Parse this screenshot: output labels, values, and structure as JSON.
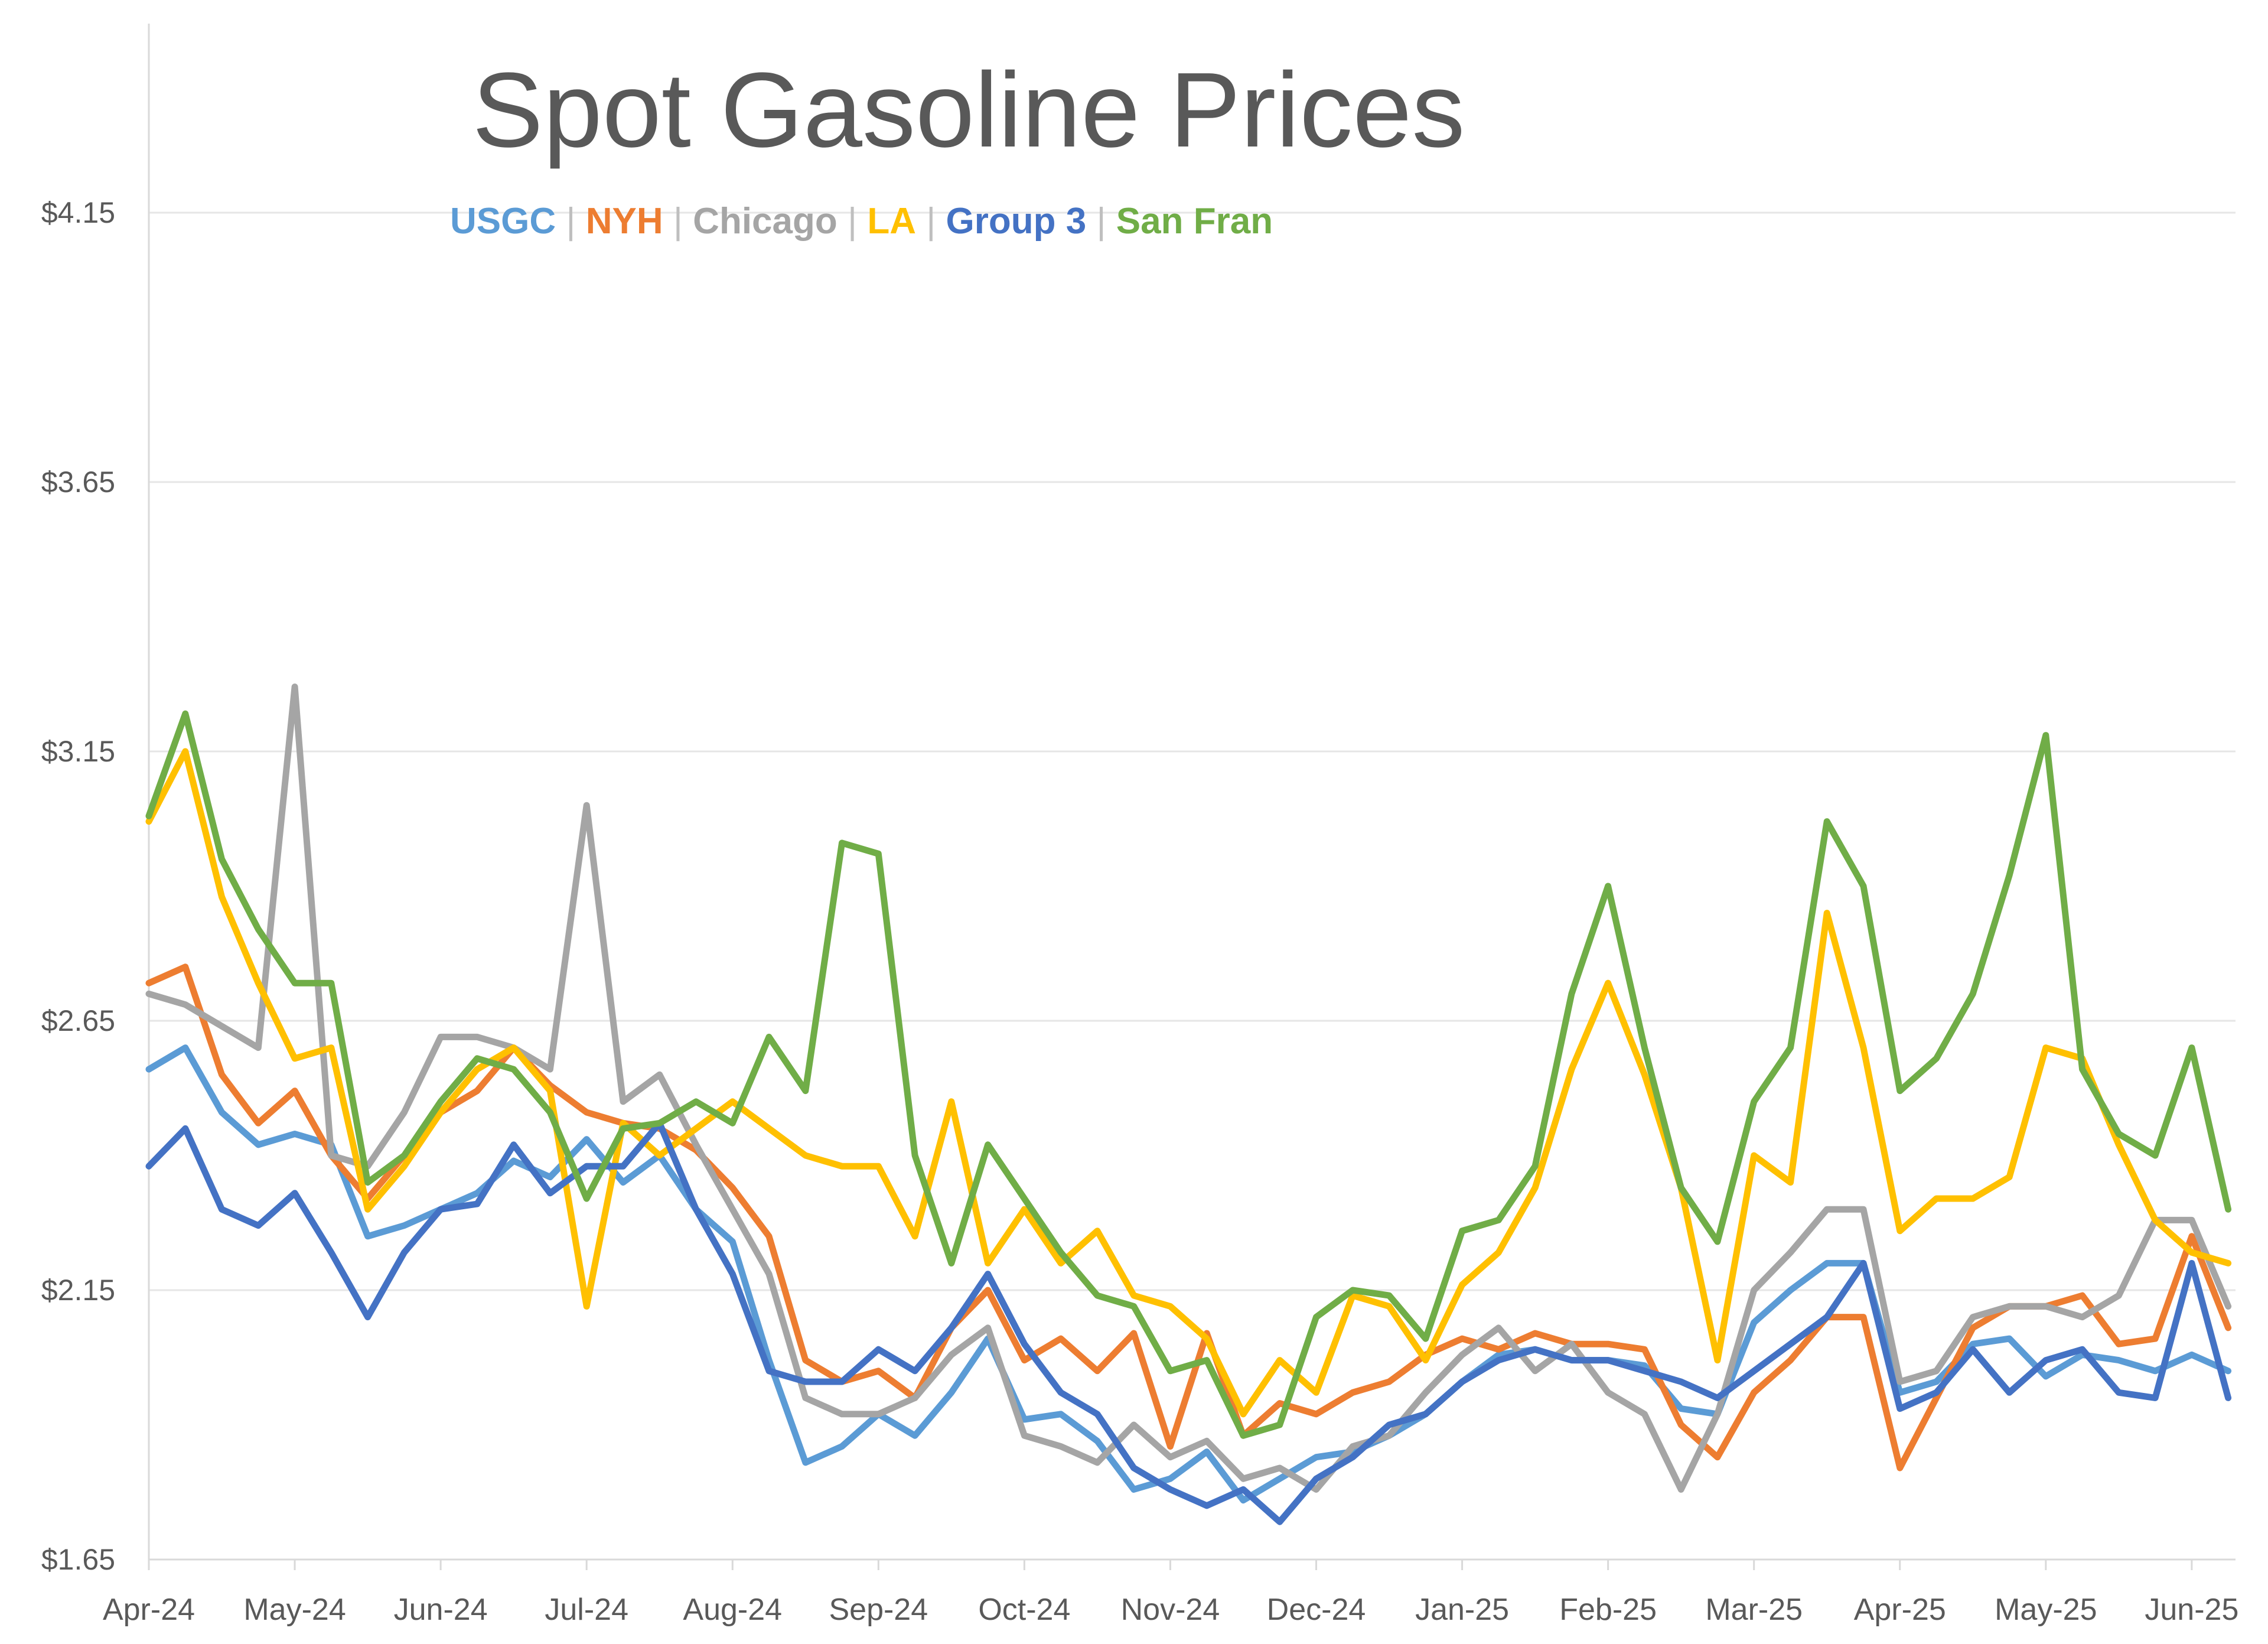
{
  "chart_data": {
    "type": "line",
    "title": "Spot Gasoline Prices",
    "xlabel": "",
    "ylabel": "",
    "ylim": [
      1.65,
      4.15
    ],
    "y_ticks": [
      "$1.65",
      "$2.15",
      "$2.65",
      "$3.15",
      "$3.65",
      "$4.15"
    ],
    "y_tick_values": [
      1.65,
      2.15,
      2.65,
      3.15,
      3.65,
      4.15
    ],
    "x_ticks": [
      "Apr-24",
      "May-24",
      "Jun-24",
      "Jul-24",
      "Aug-24",
      "Sep-24",
      "Oct-24",
      "Nov-24",
      "Dec-24",
      "Jan-25",
      "Feb-25",
      "Mar-25",
      "Apr-25",
      "May-25",
      "Jun-25"
    ],
    "x_range": [
      0,
      14.3
    ],
    "grid": true,
    "legend_position": "top",
    "x": [
      0,
      0.25,
      0.5,
      0.75,
      1.0,
      1.25,
      1.5,
      1.75,
      2.0,
      2.25,
      2.5,
      2.75,
      3.0,
      3.25,
      3.5,
      3.75,
      4.0,
      4.25,
      4.5,
      4.75,
      5.0,
      5.25,
      5.5,
      5.75,
      6.0,
      6.25,
      6.5,
      6.75,
      7.0,
      7.25,
      7.5,
      7.75,
      8.0,
      8.25,
      8.5,
      8.75,
      9.0,
      9.25,
      9.5,
      9.75,
      10.0,
      10.25,
      10.5,
      10.75,
      11.0,
      11.25,
      11.5,
      11.75,
      12.0,
      12.25,
      12.5,
      12.75,
      13.0,
      13.25,
      13.5,
      13.75,
      14.0,
      14.25
    ],
    "series": [
      {
        "name": "USGC",
        "color": "#5B9BD5",
        "values": [
          2.56,
          2.6,
          2.48,
          2.42,
          2.44,
          2.42,
          2.25,
          2.27,
          2.3,
          2.33,
          2.39,
          2.36,
          2.43,
          2.35,
          2.4,
          2.3,
          2.24,
          2.02,
          1.83,
          1.86,
          1.92,
          1.88,
          1.96,
          2.06,
          1.91,
          1.92,
          1.87,
          1.78,
          1.8,
          1.85,
          1.76,
          1.8,
          1.84,
          1.85,
          1.88,
          1.92,
          1.98,
          2.03,
          2.04,
          2.02,
          2.02,
          2.01,
          1.93,
          1.92,
          2.09,
          2.15,
          2.2,
          2.2,
          1.96,
          1.98,
          2.05,
          2.06,
          1.99,
          2.03,
          2.02,
          2.0,
          2.03,
          2.0
        ]
      },
      {
        "name": "NYH",
        "color": "#ED7D31",
        "values": [
          2.72,
          2.75,
          2.55,
          2.46,
          2.52,
          2.4,
          2.32,
          2.4,
          2.48,
          2.52,
          2.6,
          2.53,
          2.48,
          2.46,
          2.45,
          2.41,
          2.34,
          2.25,
          2.02,
          1.98,
          2.0,
          1.95,
          2.08,
          2.15,
          2.02,
          2.06,
          2.0,
          2.07,
          1.86,
          2.07,
          1.88,
          1.94,
          1.92,
          1.96,
          1.98,
          2.03,
          2.06,
          2.04,
          2.07,
          2.05,
          2.05,
          2.04,
          1.9,
          1.84,
          1.96,
          2.02,
          2.1,
          2.1,
          1.82,
          1.95,
          2.08,
          2.12,
          2.12,
          2.14,
          2.05,
          2.06,
          2.25,
          2.08
        ]
      },
      {
        "name": "Chicago",
        "color": "#A5A5A5",
        "values": [
          2.7,
          2.68,
          2.64,
          2.6,
          3.27,
          2.4,
          2.38,
          2.48,
          2.62,
          2.62,
          2.6,
          2.56,
          3.05,
          2.5,
          2.55,
          2.42,
          2.3,
          2.18,
          1.95,
          1.92,
          1.92,
          1.95,
          2.03,
          2.08,
          1.88,
          1.86,
          1.83,
          1.9,
          1.84,
          1.87,
          1.8,
          1.82,
          1.78,
          1.86,
          1.88,
          1.96,
          2.03,
          2.08,
          2.0,
          2.05,
          1.96,
          1.92,
          1.78,
          1.92,
          2.15,
          2.22,
          2.3,
          2.3,
          1.98,
          2.0,
          2.1,
          2.12,
          2.12,
          2.1,
          2.14,
          2.28,
          2.28,
          2.12
        ]
      },
      {
        "name": "LA",
        "color": "#FFC000",
        "values": [
          3.02,
          3.15,
          2.88,
          2.72,
          2.58,
          2.6,
          2.3,
          2.38,
          2.48,
          2.56,
          2.6,
          2.52,
          2.12,
          2.46,
          2.4,
          2.45,
          2.5,
          2.45,
          2.4,
          2.38,
          2.38,
          2.25,
          2.5,
          2.2,
          2.3,
          2.2,
          2.26,
          2.14,
          2.12,
          2.06,
          1.92,
          2.02,
          1.96,
          2.14,
          2.12,
          2.02,
          2.16,
          2.22,
          2.34,
          2.56,
          2.72,
          2.55,
          2.34,
          2.02,
          2.4,
          2.35,
          2.85,
          2.6,
          2.26,
          2.32,
          2.32,
          2.36,
          2.6,
          2.58,
          2.42,
          2.28,
          2.22,
          2.2
        ]
      },
      {
        "name": "Group 3",
        "color": "#4472C4",
        "values": [
          2.38,
          2.45,
          2.3,
          2.27,
          2.33,
          2.22,
          2.1,
          2.22,
          2.3,
          2.31,
          2.42,
          2.33,
          2.38,
          2.38,
          2.46,
          2.3,
          2.18,
          2.0,
          1.98,
          1.98,
          2.04,
          2.0,
          2.08,
          2.18,
          2.05,
          1.96,
          1.92,
          1.82,
          1.78,
          1.75,
          1.78,
          1.72,
          1.8,
          1.84,
          1.9,
          1.92,
          1.98,
          2.02,
          2.04,
          2.02,
          2.02,
          2.0,
          1.98,
          1.95,
          2.0,
          2.05,
          2.1,
          2.2,
          1.93,
          1.96,
          2.04,
          1.96,
          2.02,
          2.04,
          1.96,
          1.95,
          2.2,
          1.95
        ]
      },
      {
        "name": "San Fran",
        "color": "#70AD47",
        "values": [
          3.03,
          3.22,
          2.95,
          2.82,
          2.72,
          2.72,
          2.35,
          2.4,
          2.5,
          2.58,
          2.56,
          2.48,
          2.32,
          2.45,
          2.46,
          2.5,
          2.46,
          2.62,
          2.52,
          2.98,
          2.96,
          2.4,
          2.2,
          2.42,
          2.32,
          2.22,
          2.14,
          2.12,
          2.0,
          2.02,
          1.88,
          1.9,
          2.1,
          2.15,
          2.14,
          2.06,
          2.26,
          2.28,
          2.38,
          2.7,
          2.9,
          2.6,
          2.34,
          2.24,
          2.5,
          2.6,
          3.02,
          2.9,
          2.52,
          2.58,
          2.7,
          2.92,
          3.18,
          2.56,
          2.44,
          2.4,
          2.6,
          2.3
        ]
      }
    ]
  }
}
